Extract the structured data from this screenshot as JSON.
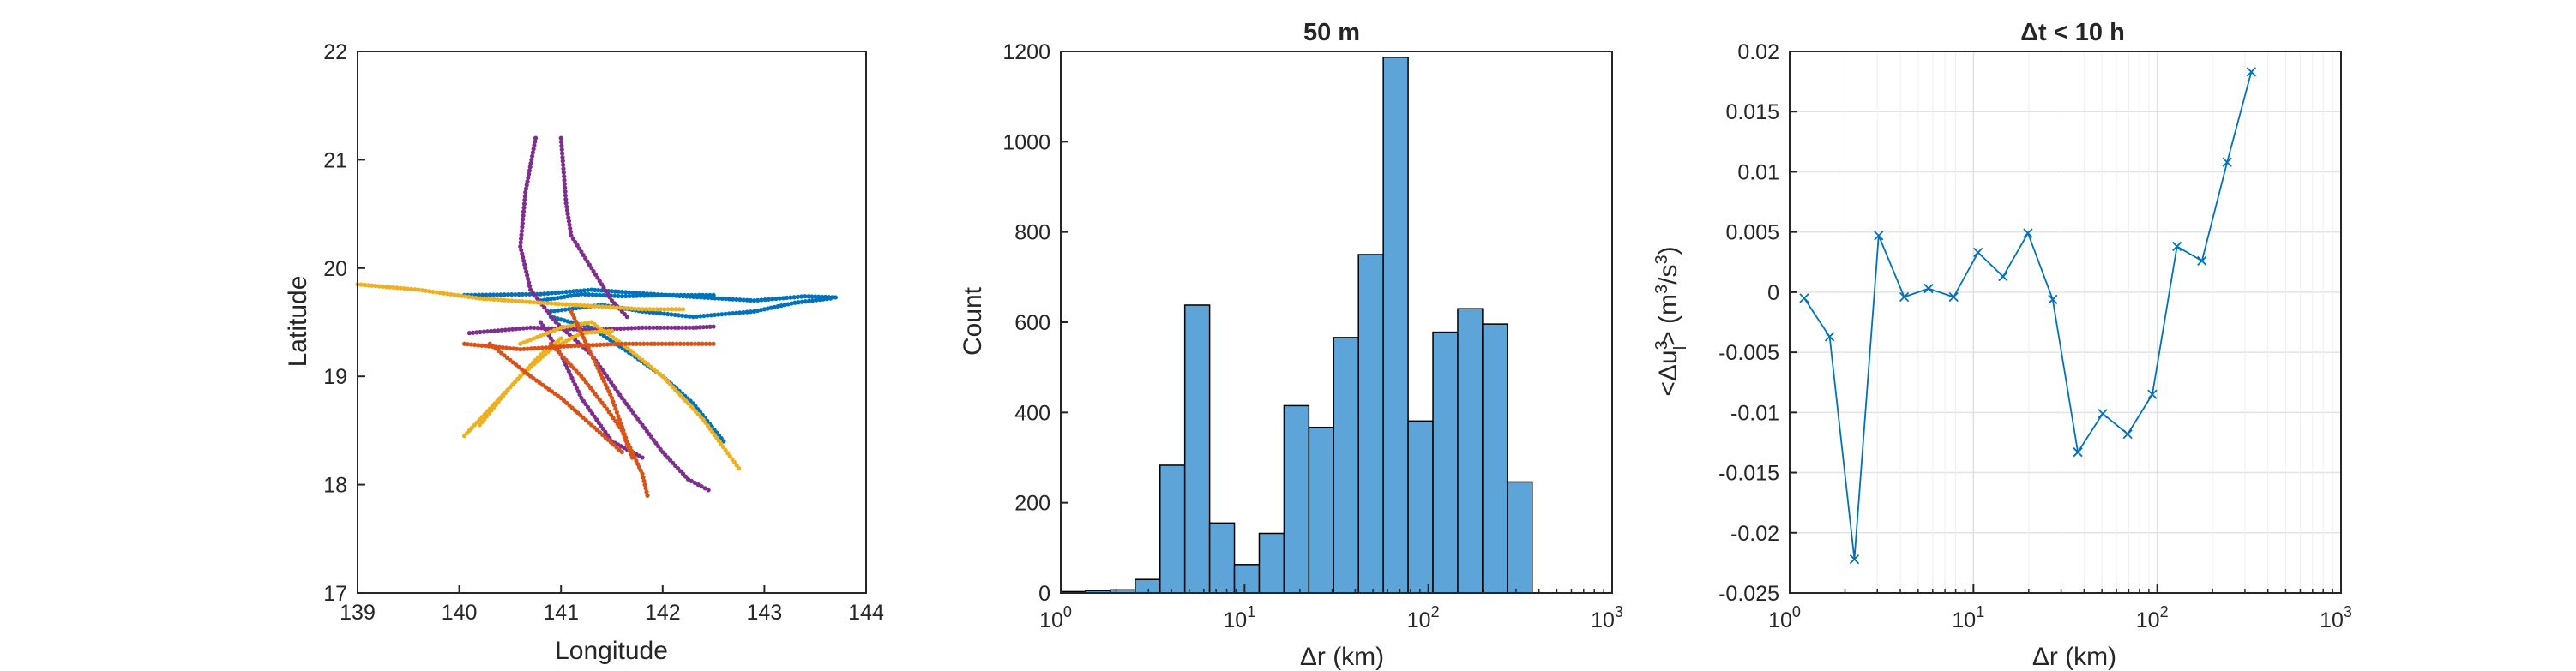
{
  "colors": {
    "blue": "#0072BD",
    "purple": "#7E2F8E",
    "yellow": "#EDB120",
    "red": "#D95319",
    "bar_fill": "#5DA5D8",
    "bar_edge": "#000000",
    "line": "#0072BD"
  },
  "chart_data": [
    {
      "type": "scatter",
      "title": "",
      "xlabel": "Longitude",
      "ylabel": "Latitude",
      "xlim": [
        139,
        144
      ],
      "ylim": [
        17,
        22
      ],
      "xticks": [
        "139",
        "140",
        "141",
        "142",
        "143",
        "144"
      ],
      "yticks": [
        "17",
        "18",
        "19",
        "20",
        "21",
        "22"
      ],
      "grid": false,
      "series": [
        {
          "color": "blue",
          "tracks": [
            [
              [
                140.05,
                19.75
              ],
              [
                140.8,
                19.76
              ],
              [
                141.3,
                19.8
              ],
              [
                141.6,
                19.78
              ],
              [
                142.2,
                19.74
              ],
              [
                142.9,
                19.7
              ],
              [
                143.4,
                19.74
              ],
              [
                143.7,
                19.73
              ]
            ],
            [
              [
                140.9,
                19.6
              ],
              [
                141.4,
                19.66
              ],
              [
                141.8,
                19.6
              ],
              [
                142.3,
                19.55
              ],
              [
                142.9,
                19.6
              ],
              [
                143.3,
                19.68
              ],
              [
                143.65,
                19.72
              ]
            ],
            [
              [
                140.8,
                19.7
              ],
              [
                141.2,
                19.76
              ],
              [
                141.6,
                19.74
              ],
              [
                142.0,
                19.75
              ],
              [
                142.5,
                19.75
              ]
            ],
            [
              [
                140.9,
                19.55
              ],
              [
                141.3,
                19.45
              ],
              [
                141.7,
                19.2
              ],
              [
                142.0,
                19.0
              ],
              [
                142.3,
                18.75
              ],
              [
                142.6,
                18.4
              ]
            ]
          ]
        },
        {
          "color": "purple",
          "tracks": [
            [
              [
                140.75,
                21.2
              ],
              [
                140.65,
                20.7
              ],
              [
                140.6,
                20.2
              ],
              [
                140.7,
                19.8
              ],
              [
                140.95,
                19.5
              ],
              [
                141.3,
                19.2
              ],
              [
                141.6,
                18.8
              ],
              [
                142.0,
                18.3
              ],
              [
                142.25,
                18.05
              ],
              [
                142.45,
                17.95
              ]
            ],
            [
              [
                141.0,
                21.2
              ],
              [
                141.05,
                20.6
              ],
              [
                141.1,
                20.3
              ],
              [
                141.3,
                20.0
              ],
              [
                141.5,
                19.7
              ],
              [
                141.65,
                19.55
              ]
            ],
            [
              [
                140.1,
                19.4
              ],
              [
                140.7,
                19.45
              ],
              [
                141.3,
                19.43
              ],
              [
                141.8,
                19.45
              ],
              [
                142.3,
                19.45
              ],
              [
                142.5,
                19.46
              ]
            ],
            [
              [
                140.8,
                19.5
              ],
              [
                141.0,
                19.2
              ],
              [
                141.2,
                18.8
              ],
              [
                141.5,
                18.4
              ],
              [
                141.8,
                18.25
              ]
            ]
          ]
        },
        {
          "color": "yellow",
          "tracks": [
            [
              [
                139.0,
                19.85
              ],
              [
                139.6,
                19.8
              ],
              [
                140.2,
                19.72
              ],
              [
                140.8,
                19.68
              ],
              [
                141.3,
                19.65
              ],
              [
                141.8,
                19.62
              ],
              [
                142.2,
                19.62
              ]
            ],
            [
              [
                140.05,
                18.45
              ],
              [
                140.3,
                18.7
              ],
              [
                140.6,
                19.0
              ],
              [
                140.9,
                19.25
              ],
              [
                141.2,
                19.4
              ],
              [
                141.5,
                19.42
              ]
            ],
            [
              [
                140.2,
                18.55
              ],
              [
                140.5,
                18.9
              ],
              [
                140.8,
                19.2
              ],
              [
                141.0,
                19.35
              ]
            ],
            [
              [
                140.6,
                19.3
              ],
              [
                141.0,
                19.45
              ],
              [
                141.3,
                19.5
              ],
              [
                141.6,
                19.3
              ],
              [
                142.0,
                19.0
              ],
              [
                142.4,
                18.6
              ],
              [
                142.75,
                18.15
              ]
            ]
          ]
        },
        {
          "color": "red",
          "tracks": [
            [
              [
                140.05,
                19.3
              ],
              [
                140.6,
                19.25
              ],
              [
                141.1,
                19.28
              ],
              [
                141.6,
                19.3
              ],
              [
                142.1,
                19.3
              ],
              [
                142.5,
                19.3
              ]
            ],
            [
              [
                140.3,
                19.3
              ],
              [
                140.7,
                19.0
              ],
              [
                141.0,
                18.8
              ],
              [
                141.3,
                18.55
              ],
              [
                141.6,
                18.3
              ]
            ],
            [
              [
                141.1,
                19.6
              ],
              [
                141.3,
                19.2
              ],
              [
                141.5,
                18.8
              ],
              [
                141.65,
                18.4
              ],
              [
                141.8,
                18.1
              ],
              [
                141.85,
                17.9
              ]
            ],
            [
              [
                140.9,
                19.3
              ],
              [
                141.2,
                19.0
              ],
              [
                141.45,
                18.7
              ],
              [
                141.6,
                18.5
              ],
              [
                141.7,
                18.25
              ]
            ]
          ]
        }
      ]
    },
    {
      "type": "bar",
      "title": "50 m",
      "xlabel": "Δr (km)",
      "ylabel": "Count",
      "xscale": "log",
      "xlim": [
        1,
        1000
      ],
      "ylim": [
        0,
        1200
      ],
      "xticks": [
        "10",
        "10",
        "10",
        "10"
      ],
      "xtick_exponents": [
        "0",
        "1",
        "2",
        "3"
      ],
      "yticks": [
        "0",
        "200",
        "400",
        "600",
        "800",
        "1000",
        "1200"
      ],
      "grid": false,
      "bins_log10": {
        "start": 0,
        "width": 0.135
      },
      "values": [
        3,
        5,
        7,
        30,
        283,
        638,
        155,
        63,
        132,
        415,
        367,
        566,
        750,
        1187,
        381,
        578,
        630,
        596,
        246
      ]
    },
    {
      "type": "line",
      "title": "Δt < 10 h",
      "xlabel": "Δr (km)",
      "ylabel": "<Δu_l^3> (m^3/s^3)",
      "xscale": "log",
      "xlim": [
        1,
        1000
      ],
      "ylim": [
        -0.025,
        0.02
      ],
      "xticks": [
        "10",
        "10",
        "10",
        "10"
      ],
      "xtick_exponents": [
        "0",
        "1",
        "2",
        "3"
      ],
      "yticks": [
        "-0.025",
        "-0.02",
        "-0.015",
        "-0.01",
        "-0.005",
        "0",
        "0.005",
        "0.01",
        "0.015",
        "0.02"
      ],
      "grid": true,
      "marker": "x",
      "x": [
        1.2,
        1.65,
        2.25,
        3.05,
        4.2,
        5.7,
        7.8,
        10.6,
        14.5,
        19.8,
        27.0,
        37.0,
        50.5,
        69.0,
        94.0,
        128.0,
        175.0,
        240.0,
        325.0
      ],
      "y": [
        -0.0005,
        -0.0037,
        -0.0222,
        0.0047,
        -0.0004,
        0.0003,
        -0.0004,
        0.0033,
        0.0013,
        0.0049,
        -0.0006,
        -0.0133,
        -0.0101,
        -0.0118,
        -0.0085,
        0.0038,
        0.0026,
        0.0108,
        0.0183
      ]
    }
  ]
}
